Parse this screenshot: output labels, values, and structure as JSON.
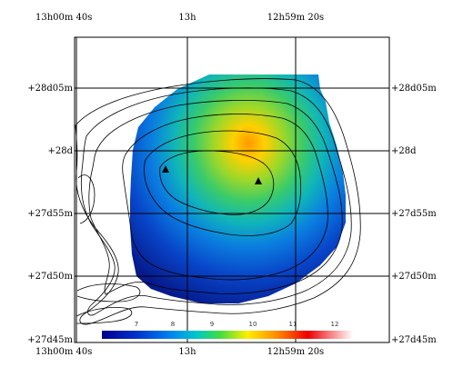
{
  "chart_data": {
    "type": "heatmap",
    "axes": {
      "ra_ticks": [
        "13h00m 40s",
        "13h",
        "12h59m 20s"
      ],
      "dec_ticks": [
        "+28d05m",
        "+28d",
        "+27d55m",
        "+27d50m",
        "+27d45m"
      ]
    },
    "colorbar": {
      "ticks": [
        "7",
        "8",
        "9",
        "10",
        "11",
        "12"
      ],
      "range": [
        6.5,
        12.5
      ],
      "stops": [
        "#00008b",
        "#0033cc",
        "#0088ee",
        "#00c8c8",
        "#40dd40",
        "#ffee00",
        "#ff8800",
        "#ee0000",
        "#ffffff"
      ]
    },
    "grid": true,
    "peak_value": 10.6,
    "markers": [
      {
        "shape": "triangle",
        "ra": "13h00m 04s",
        "dec": "+27d58.9m"
      },
      {
        "shape": "triangle",
        "ra": "12h59m 44s",
        "dec": "+27d57.4m"
      }
    ],
    "contours": [
      {
        "level": "outermost"
      },
      {
        "level": 2
      },
      {
        "level": 3
      },
      {
        "level": 4
      },
      {
        "level": 5
      },
      {
        "level": "innermost"
      }
    ]
  }
}
